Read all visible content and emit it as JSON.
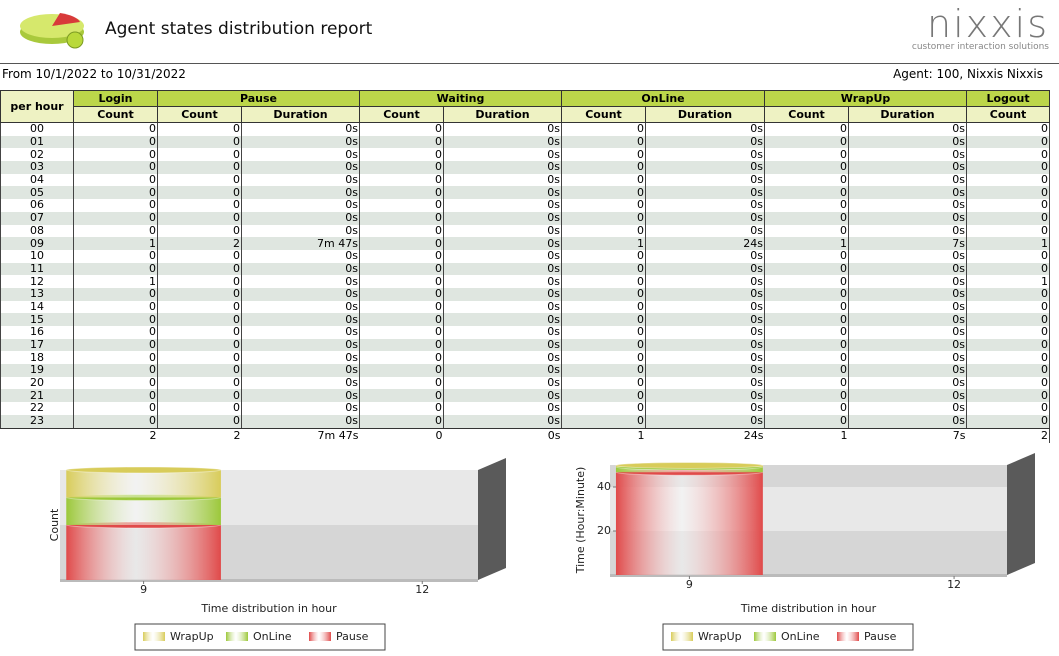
{
  "header": {
    "title": "Agent states distribution report",
    "logo": "nixxis",
    "tagline": "customer interaction solutions"
  },
  "period": "From  10/1/2022 to 10/31/2022",
  "agent": "Agent: 100, Nixxis Nixxis",
  "table": {
    "corner": "per hour",
    "groups": [
      {
        "name": "Login",
        "columns": [
          "Count"
        ]
      },
      {
        "name": "Pause",
        "columns": [
          "Count",
          "Duration"
        ]
      },
      {
        "name": "Waiting",
        "columns": [
          "Count",
          "Duration"
        ]
      },
      {
        "name": "OnLine",
        "columns": [
          "Count",
          "Duration"
        ]
      },
      {
        "name": "WrapUp",
        "columns": [
          "Count",
          "Duration"
        ]
      },
      {
        "name": "Logout",
        "columns": [
          "Count"
        ]
      }
    ],
    "rows": [
      [
        "00",
        0,
        0,
        "0s",
        0,
        "0s",
        0,
        "0s",
        0,
        "0s",
        0
      ],
      [
        "01",
        0,
        0,
        "0s",
        0,
        "0s",
        0,
        "0s",
        0,
        "0s",
        0
      ],
      [
        "02",
        0,
        0,
        "0s",
        0,
        "0s",
        0,
        "0s",
        0,
        "0s",
        0
      ],
      [
        "03",
        0,
        0,
        "0s",
        0,
        "0s",
        0,
        "0s",
        0,
        "0s",
        0
      ],
      [
        "04",
        0,
        0,
        "0s",
        0,
        "0s",
        0,
        "0s",
        0,
        "0s",
        0
      ],
      [
        "05",
        0,
        0,
        "0s",
        0,
        "0s",
        0,
        "0s",
        0,
        "0s",
        0
      ],
      [
        "06",
        0,
        0,
        "0s",
        0,
        "0s",
        0,
        "0s",
        0,
        "0s",
        0
      ],
      [
        "07",
        0,
        0,
        "0s",
        0,
        "0s",
        0,
        "0s",
        0,
        "0s",
        0
      ],
      [
        "08",
        0,
        0,
        "0s",
        0,
        "0s",
        0,
        "0s",
        0,
        "0s",
        0
      ],
      [
        "09",
        1,
        2,
        "7m 47s",
        0,
        "0s",
        1,
        "24s",
        1,
        "7s",
        1
      ],
      [
        "10",
        0,
        0,
        "0s",
        0,
        "0s",
        0,
        "0s",
        0,
        "0s",
        0
      ],
      [
        "11",
        0,
        0,
        "0s",
        0,
        "0s",
        0,
        "0s",
        0,
        "0s",
        0
      ],
      [
        "12",
        1,
        0,
        "0s",
        0,
        "0s",
        0,
        "0s",
        0,
        "0s",
        1
      ],
      [
        "13",
        0,
        0,
        "0s",
        0,
        "0s",
        0,
        "0s",
        0,
        "0s",
        0
      ],
      [
        "14",
        0,
        0,
        "0s",
        0,
        "0s",
        0,
        "0s",
        0,
        "0s",
        0
      ],
      [
        "15",
        0,
        0,
        "0s",
        0,
        "0s",
        0,
        "0s",
        0,
        "0s",
        0
      ],
      [
        "16",
        0,
        0,
        "0s",
        0,
        "0s",
        0,
        "0s",
        0,
        "0s",
        0
      ],
      [
        "17",
        0,
        0,
        "0s",
        0,
        "0s",
        0,
        "0s",
        0,
        "0s",
        0
      ],
      [
        "18",
        0,
        0,
        "0s",
        0,
        "0s",
        0,
        "0s",
        0,
        "0s",
        0
      ],
      [
        "19",
        0,
        0,
        "0s",
        0,
        "0s",
        0,
        "0s",
        0,
        "0s",
        0
      ],
      [
        "20",
        0,
        0,
        "0s",
        0,
        "0s",
        0,
        "0s",
        0,
        "0s",
        0
      ],
      [
        "21",
        0,
        0,
        "0s",
        0,
        "0s",
        0,
        "0s",
        0,
        "0s",
        0
      ],
      [
        "22",
        0,
        0,
        "0s",
        0,
        "0s",
        0,
        "0s",
        0,
        "0s",
        0
      ],
      [
        "23",
        0,
        0,
        "0s",
        0,
        "0s",
        0,
        "0s",
        0,
        "0s",
        0
      ]
    ],
    "totals": [
      2,
      2,
      "7m 47s",
      0,
      "0s",
      1,
      "24s",
      1,
      "7s",
      2
    ]
  },
  "chart_data": [
    {
      "type": "bar",
      "stacked": true,
      "y_label": "Count",
      "x_label": "Time distribution in hour",
      "x": [
        9
      ],
      "xlim": [
        8.1,
        12.6
      ],
      "xticks": [
        9,
        12
      ],
      "ylim": [
        0,
        4
      ],
      "yticks": [],
      "series": [
        {
          "name": "WrapUp",
          "color": "#d8cc5a",
          "values": [
            1
          ]
        },
        {
          "name": "OnLine",
          "color": "#9cc83a",
          "values": [
            1
          ]
        },
        {
          "name": "Pause",
          "color": "#e04a4a",
          "values": [
            2
          ]
        }
      ]
    },
    {
      "type": "bar",
      "stacked": true,
      "y_label": "Time (Hour:Minute)",
      "x_label": "Time distribution in hour",
      "x": [
        9
      ],
      "xlim": [
        8.1,
        12.6
      ],
      "xticks": [
        9,
        12
      ],
      "ylim": [
        0,
        50
      ],
      "yticks": [
        20,
        40
      ],
      "series": [
        {
          "name": "WrapUp",
          "color": "#d8cc5a",
          "values": [
            0.7
          ]
        },
        {
          "name": "OnLine",
          "color": "#9cc83a",
          "values": [
            2.4
          ]
        },
        {
          "name": "Pause",
          "color": "#e04a4a",
          "values": [
            46.7
          ]
        }
      ]
    }
  ]
}
